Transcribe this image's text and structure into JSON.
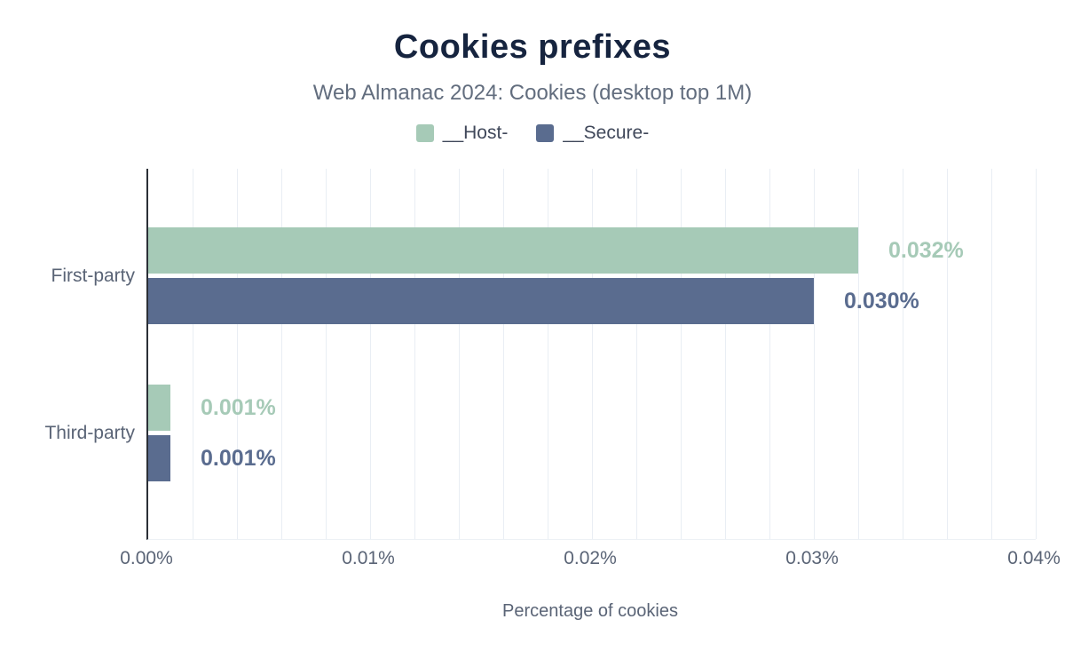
{
  "chart_data": {
    "type": "bar",
    "orientation": "horizontal",
    "title": "Cookies prefixes",
    "subtitle": "Web Almanac 2024: Cookies (desktop top 1M)",
    "xlabel": "Percentage of cookies",
    "categories": [
      "First-party",
      "Third-party"
    ],
    "series": [
      {
        "name": "__Host-",
        "color": "#a6cab7",
        "values": [
          0.032,
          0.001
        ],
        "value_labels": [
          "0.032%",
          "0.001%"
        ]
      },
      {
        "name": "__Secure-",
        "color": "#5a6c8f",
        "values": [
          0.03,
          0.001
        ],
        "value_labels": [
          "0.030%",
          "0.001%"
        ]
      }
    ],
    "xlim": [
      0,
      0.04
    ],
    "x_ticks": [
      "0.00%",
      "0.01%",
      "0.02%",
      "0.03%",
      "0.04%"
    ],
    "grid": true,
    "grid_step": 0.002,
    "legend_position": "top",
    "colors": {
      "title": "#16243f",
      "subtitle": "#626d7e",
      "axis_text": "#5a6476",
      "gridline": "#e9eef4",
      "axis_line": "#2b2f36"
    }
  }
}
